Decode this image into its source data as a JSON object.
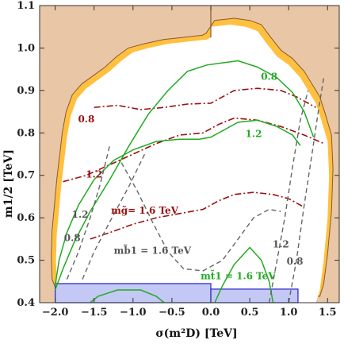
{
  "chart_data": {
    "type": "contour",
    "xlabel": "σ(m²D) [TeV]",
    "ylabel": "m1/2 [TeV]",
    "xlim": [
      -2.2,
      1.65
    ],
    "ylim": [
      0.4,
      1.1
    ],
    "xticks": [
      -2.0,
      -1.5,
      -1.0,
      -0.5,
      0.0,
      0.5,
      1.0,
      1.5
    ],
    "xtick_labels": [
      "−2.0",
      "−1.5",
      "−1.0",
      "−0.5",
      "0.0",
      "0.5",
      "1.0",
      "1.5"
    ],
    "yticks": [
      0.4,
      0.5,
      0.6,
      0.7,
      0.8,
      0.9,
      1.0,
      1.1
    ],
    "ytick_labels": [
      "0.4",
      "0.5",
      "0.6",
      "0.7",
      "0.8",
      "0.9",
      "1.0",
      "1.1"
    ],
    "grid": false,
    "colors": {
      "excluded": "#e8c6a6",
      "band": "#ffc040",
      "allowed": "#ffffff",
      "blue_region": "#c4c8f4",
      "blue_edge": "#2222cc",
      "gluino": "#9a1010",
      "stop": "#22aa22",
      "sbottom": "#666666",
      "boundary": "#8b5a2b"
    },
    "regions": {
      "vertical_divider_x": 0.0,
      "blue_left": {
        "x": [
          -2.0,
          0.0
        ],
        "y": [
          0.4,
          0.445
        ]
      },
      "blue_right": {
        "x": [
          0.0,
          1.12
        ],
        "y": [
          0.4,
          0.432
        ]
      }
    },
    "series": [
      {
        "group": "gluino",
        "label": "0.8",
        "points": [
          [
            -1.5,
            0.86
          ],
          [
            -1.2,
            0.865
          ],
          [
            -0.9,
            0.855
          ],
          [
            -0.6,
            0.86
          ],
          [
            -0.3,
            0.868
          ],
          [
            0.0,
            0.87
          ],
          [
            0.3,
            0.9
          ],
          [
            0.6,
            0.905
          ],
          [
            0.9,
            0.9
          ],
          [
            1.1,
            0.885
          ],
          [
            1.35,
            0.86
          ]
        ]
      },
      {
        "group": "gluino",
        "label": "1.2",
        "points": [
          [
            -1.9,
            0.685
          ],
          [
            -1.6,
            0.7
          ],
          [
            -1.3,
            0.725
          ],
          [
            -1.0,
            0.75
          ],
          [
            -0.7,
            0.775
          ],
          [
            -0.4,
            0.795
          ],
          [
            -0.1,
            0.8
          ],
          [
            0.1,
            0.82
          ],
          [
            0.3,
            0.835
          ],
          [
            0.6,
            0.83
          ],
          [
            0.9,
            0.815
          ],
          [
            1.2,
            0.795
          ],
          [
            1.45,
            0.775
          ]
        ]
      },
      {
        "group": "gluino",
        "label": "mg̃= 1.6 TeV",
        "points": [
          [
            -1.55,
            0.55
          ],
          [
            -1.3,
            0.565
          ],
          [
            -1.0,
            0.585
          ],
          [
            -0.7,
            0.6
          ],
          [
            -0.4,
            0.61
          ],
          [
            -0.1,
            0.62
          ],
          [
            0.1,
            0.64
          ],
          [
            0.3,
            0.655
          ],
          [
            0.55,
            0.66
          ],
          [
            0.8,
            0.655
          ],
          [
            1.0,
            0.645
          ],
          [
            1.2,
            0.625
          ]
        ]
      },
      {
        "group": "stop",
        "label": "0.8",
        "points": [
          [
            -2.0,
            0.43
          ],
          [
            -1.9,
            0.48
          ],
          [
            -1.75,
            0.545
          ],
          [
            -1.55,
            0.615
          ],
          [
            -1.3,
            0.69
          ],
          [
            -1.05,
            0.77
          ],
          [
            -0.8,
            0.845
          ],
          [
            -0.55,
            0.9
          ],
          [
            -0.3,
            0.945
          ],
          [
            -0.05,
            0.96
          ],
          [
            0.15,
            0.965
          ],
          [
            0.35,
            0.97
          ],
          [
            0.6,
            0.955
          ],
          [
            0.85,
            0.93
          ],
          [
            1.05,
            0.895
          ],
          [
            1.2,
            0.85
          ],
          [
            1.32,
            0.79
          ]
        ]
      },
      {
        "group": "stop",
        "label": "1.2",
        "points": [
          [
            -2.0,
            0.44
          ],
          [
            -1.95,
            0.5
          ],
          [
            -1.85,
            0.565
          ],
          [
            -1.7,
            0.63
          ],
          [
            -1.5,
            0.69
          ],
          [
            -1.25,
            0.735
          ],
          [
            -1.0,
            0.76
          ],
          [
            -0.7,
            0.78
          ],
          [
            -0.4,
            0.785
          ],
          [
            -0.15,
            0.785
          ],
          [
            0.0,
            0.79
          ],
          [
            0.15,
            0.805
          ],
          [
            0.35,
            0.825
          ],
          [
            0.6,
            0.83
          ],
          [
            0.85,
            0.815
          ],
          [
            1.05,
            0.795
          ],
          [
            1.15,
            0.77
          ]
        ]
      },
      {
        "group": "stop",
        "label": "mt̃1 = 1.6 TeV",
        "points": [
          [
            -1.55,
            0.4
          ],
          [
            -1.45,
            0.415
          ],
          [
            -1.2,
            0.43
          ],
          [
            -0.9,
            0.43
          ],
          [
            -0.7,
            0.415
          ],
          [
            -0.6,
            0.4
          ]
        ]
      },
      {
        "group": "stop",
        "label": "",
        "points": [
          [
            0.05,
            0.4
          ],
          [
            0.15,
            0.44
          ],
          [
            0.3,
            0.49
          ],
          [
            0.5,
            0.53
          ],
          [
            0.65,
            0.5
          ],
          [
            0.75,
            0.45
          ],
          [
            0.8,
            0.4
          ]
        ]
      },
      {
        "group": "sbottom",
        "label": "0.8",
        "points": [
          [
            -1.85,
            0.455
          ],
          [
            -1.7,
            0.52
          ],
          [
            -1.55,
            0.6
          ],
          [
            -1.42,
            0.68
          ],
          [
            -1.3,
            0.77
          ]
        ]
      },
      {
        "group": "sbottom",
        "label": "1.2",
        "points": [
          [
            -1.65,
            0.455
          ],
          [
            -1.5,
            0.52
          ],
          [
            -1.3,
            0.59
          ],
          [
            -1.05,
            0.675
          ],
          [
            -0.85,
            0.75
          ]
        ]
      },
      {
        "group": "sbottom",
        "label": "mb̃1 = 1.6 TeV",
        "points": [
          [
            -1.15,
            0.73
          ],
          [
            -0.95,
            0.665
          ],
          [
            -0.75,
            0.59
          ],
          [
            -0.55,
            0.52
          ],
          [
            -0.35,
            0.48
          ],
          [
            -0.1,
            0.475
          ],
          [
            0.15,
            0.5
          ],
          [
            0.35,
            0.55
          ],
          [
            0.55,
            0.6
          ],
          [
            0.75,
            0.62
          ],
          [
            0.9,
            0.615
          ]
        ]
      },
      {
        "group": "sbottom",
        "label": "",
        "points": [
          [
            0.75,
            0.4
          ],
          [
            0.85,
            0.5
          ],
          [
            0.95,
            0.6
          ],
          [
            1.05,
            0.72
          ],
          [
            1.15,
            0.83
          ],
          [
            1.25,
            0.9
          ]
        ]
      },
      {
        "group": "sbottom",
        "label": "",
        "points": [
          [
            1.0,
            0.4
          ],
          [
            1.1,
            0.5
          ],
          [
            1.2,
            0.63
          ],
          [
            1.3,
            0.75
          ],
          [
            1.38,
            0.85
          ],
          [
            1.45,
            0.93
          ]
        ]
      }
    ],
    "boundaries": {
      "allowed_left_x": [
        -1.98,
        -1.99,
        -1.98,
        -1.95,
        -1.92,
        -1.88,
        -1.85,
        -1.8,
        -1.72,
        -1.6,
        -1.45,
        -1.3,
        -1.15,
        -1.0,
        -0.8,
        -0.55,
        -0.3,
        -0.05,
        0.0
      ],
      "allowed_left_y": [
        0.445,
        0.5,
        0.56,
        0.62,
        0.68,
        0.74,
        0.79,
        0.84,
        0.88,
        0.905,
        0.925,
        0.945,
        0.97,
        0.99,
        1.0,
        1.01,
        1.015,
        1.02,
        1.025
      ]
    },
    "annotations": [
      {
        "text": "0.8",
        "x": -1.6,
        "y": 0.825,
        "group": "gluino"
      },
      {
        "text": "1.2",
        "x": -1.5,
        "y": 0.695,
        "group": "gluino"
      },
      {
        "text": "mg̃= 1.6 TeV",
        "x": -0.85,
        "y": 0.61,
        "group": "gluino"
      },
      {
        "text": "0.8",
        "x": 0.75,
        "y": 0.925,
        "group": "stop"
      },
      {
        "text": "1.2",
        "x": 0.55,
        "y": 0.79,
        "group": "stop"
      },
      {
        "text": "mt̃1 = 1.6 TeV",
        "x": 0.35,
        "y": 0.455,
        "group": "stop"
      },
      {
        "text": "1.2",
        "x": -1.68,
        "y": 0.6,
        "group": "sbottom"
      },
      {
        "text": "0.8",
        "x": -1.78,
        "y": 0.545,
        "group": "sbottom"
      },
      {
        "text": "mb̃1 = 1.6 TeV",
        "x": -0.75,
        "y": 0.515,
        "group": "sbottom"
      },
      {
        "text": "1.2",
        "x": 0.9,
        "y": 0.53,
        "group": "sbottom"
      },
      {
        "text": "0.8",
        "x": 1.08,
        "y": 0.49,
        "group": "sbottom"
      }
    ]
  }
}
